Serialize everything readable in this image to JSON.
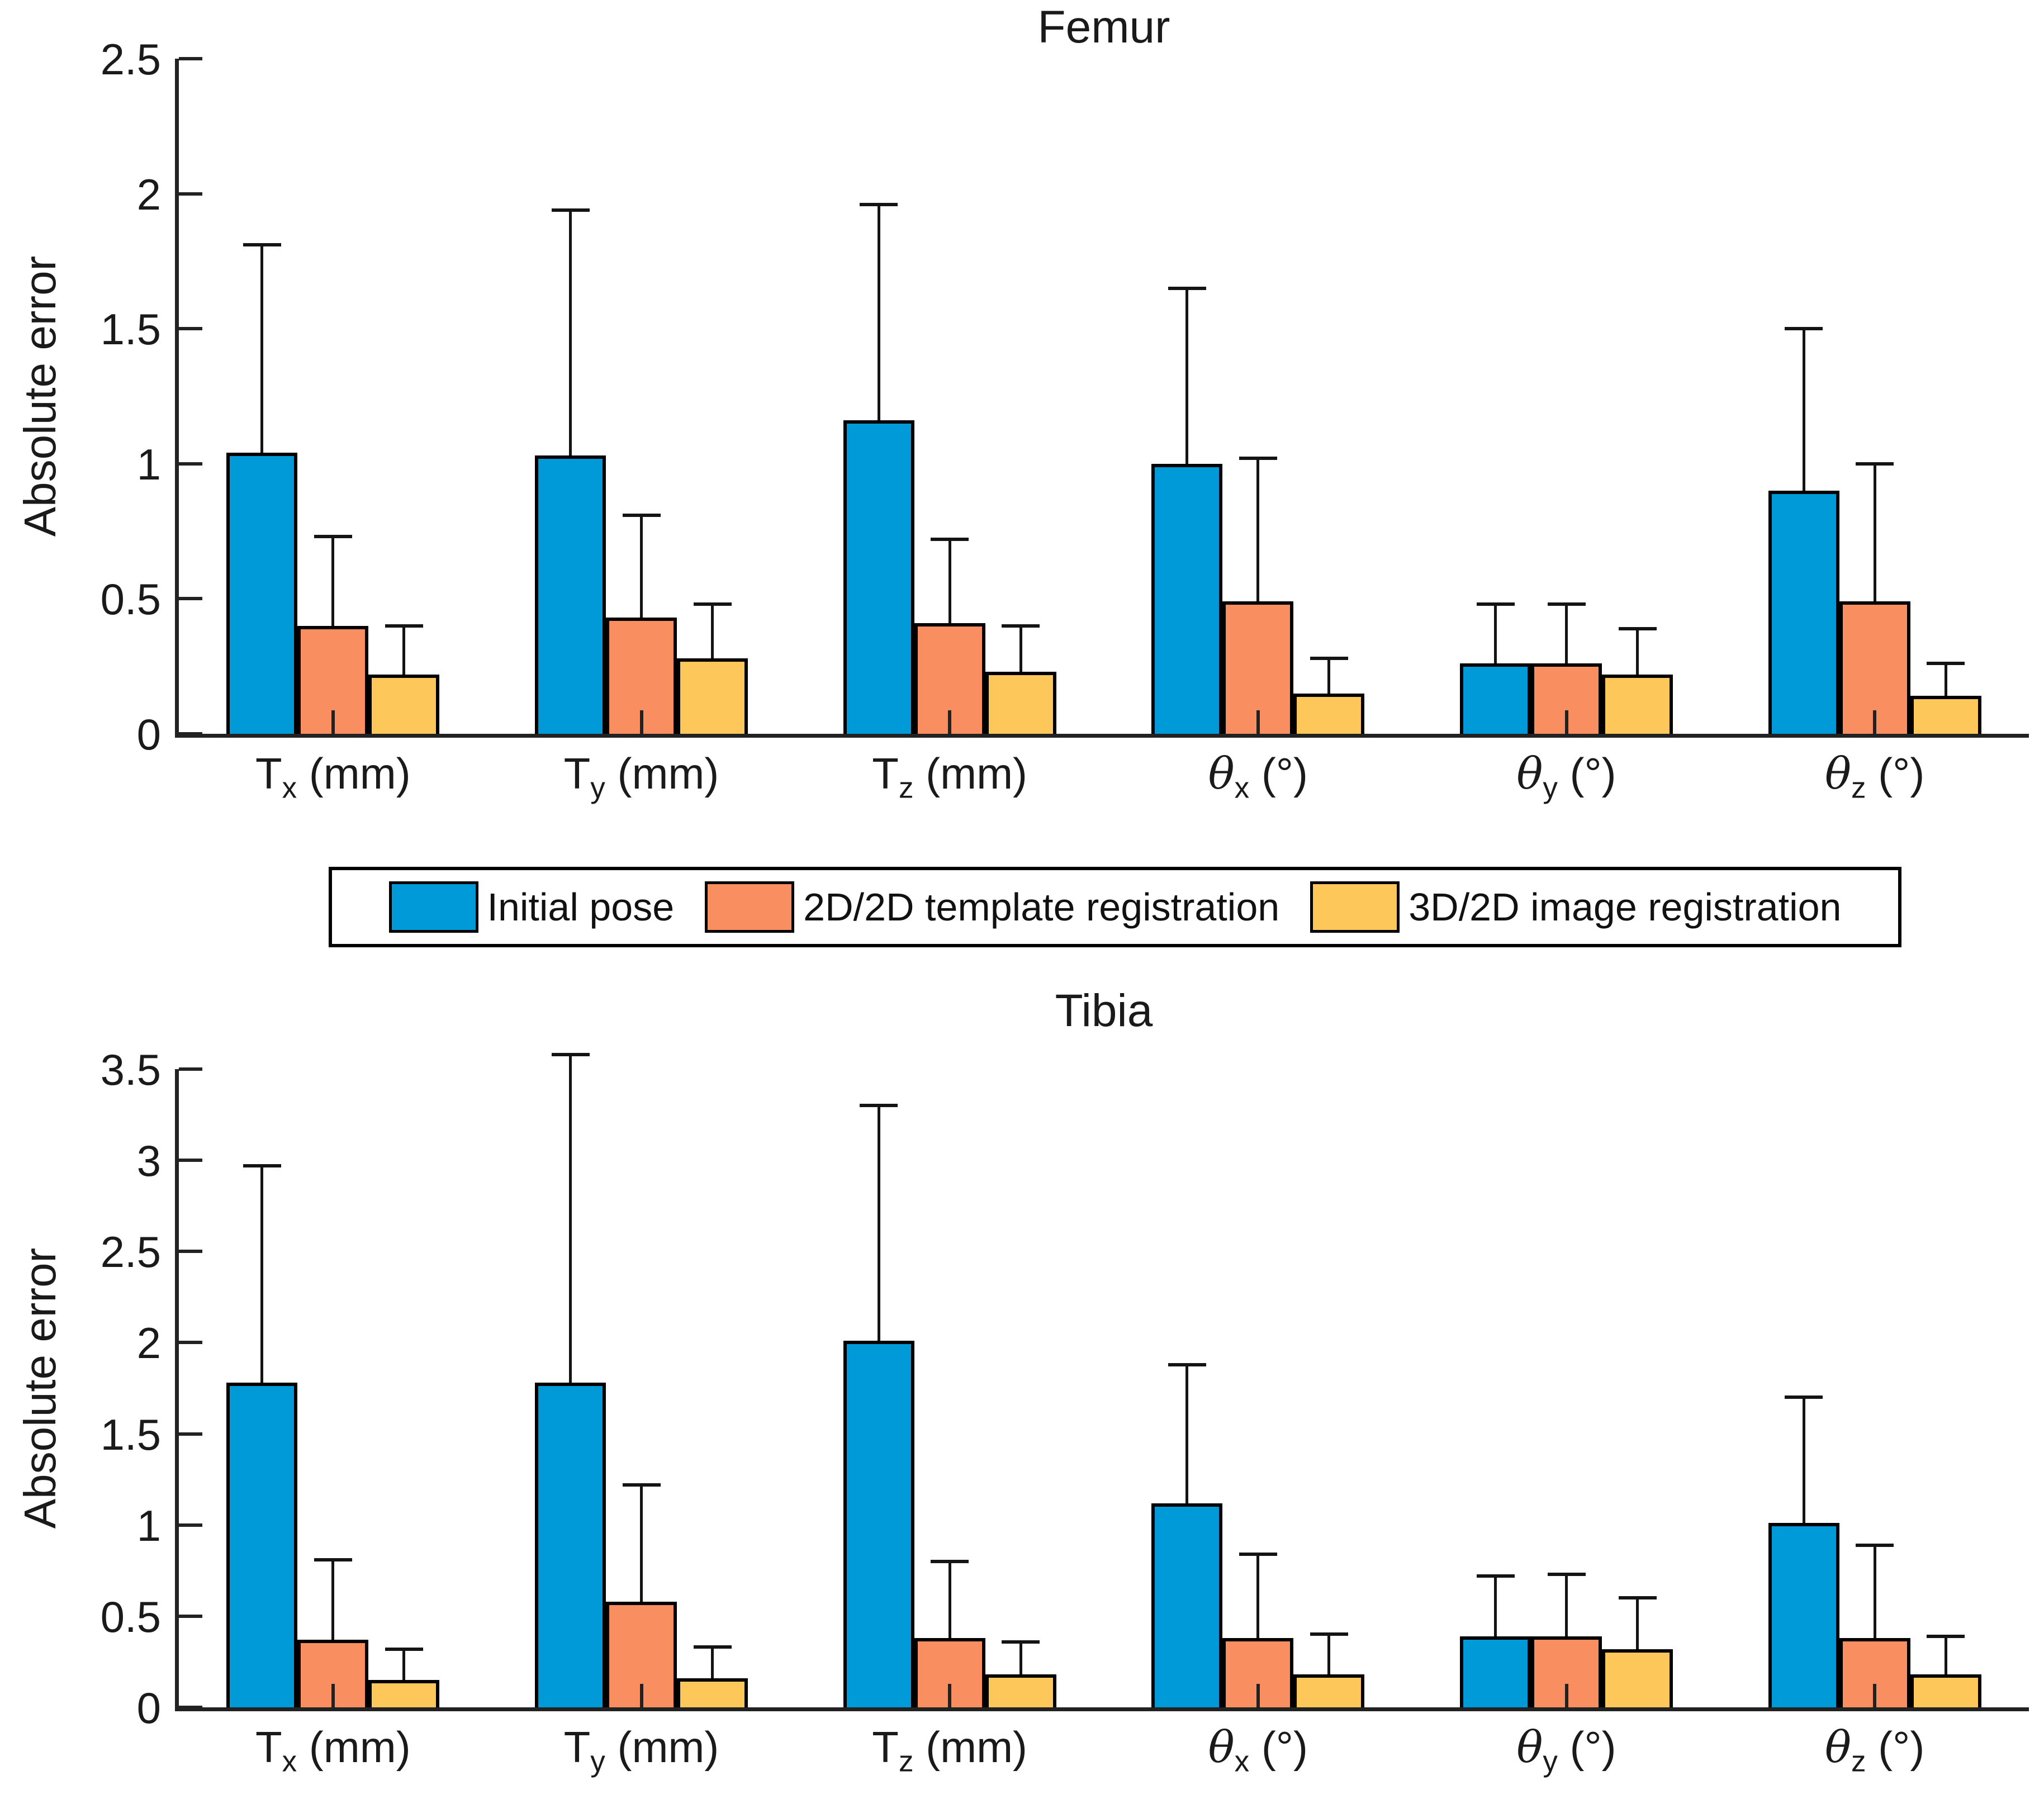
{
  "figure": {
    "background": "#ffffff",
    "axis_color": "#222222",
    "bar_edge_color": "#000000",
    "error_bar_color": "#141414"
  },
  "legend": {
    "items": [
      {
        "label": "Initial pose",
        "color": "#009AD9"
      },
      {
        "label": "2D/2D template registration",
        "color": "#F98E61"
      },
      {
        "label": "3D/2D image registration",
        "color": "#FDC75A"
      }
    ]
  },
  "chart_data": [
    {
      "type": "bar",
      "title": "Femur",
      "ylabel": "Absolute error",
      "xlabel": "",
      "ylim": [
        0,
        2.5
      ],
      "yticks": [
        0,
        0.5,
        1,
        1.5,
        2,
        2.5
      ],
      "ytick_labels": [
        "0",
        "0.5",
        "1",
        "1.5",
        "2",
        "2.5"
      ],
      "grid": false,
      "legend_position": "below",
      "categories": [
        {
          "base": "T",
          "sub": "x",
          "unit": "(mm)",
          "italic": false
        },
        {
          "base": "T",
          "sub": "y",
          "unit": "(mm)",
          "italic": false
        },
        {
          "base": "T",
          "sub": "z",
          "unit": "(mm)",
          "italic": false
        },
        {
          "base": "θ",
          "sub": "x",
          "unit": "(°)",
          "italic": true
        },
        {
          "base": "θ",
          "sub": "y",
          "unit": "(°)",
          "italic": true
        },
        {
          "base": "θ",
          "sub": "z",
          "unit": "(°)",
          "italic": true
        }
      ],
      "series": [
        {
          "name": "Initial pose",
          "color": "#009AD9",
          "values": [
            1.04,
            1.03,
            1.16,
            1.0,
            0.26,
            0.9
          ],
          "err_top": [
            1.81,
            1.94,
            1.96,
            1.65,
            0.48,
            1.5
          ]
        },
        {
          "name": "2D/2D template registration",
          "color": "#F98E61",
          "values": [
            0.4,
            0.43,
            0.41,
            0.49,
            0.26,
            0.49
          ],
          "err_top": [
            0.73,
            0.81,
            0.72,
            1.02,
            0.48,
            1.0
          ]
        },
        {
          "name": "3D/2D image registration",
          "color": "#FDC75A",
          "values": [
            0.22,
            0.28,
            0.23,
            0.15,
            0.22,
            0.14
          ],
          "err_top": [
            0.4,
            0.48,
            0.4,
            0.28,
            0.39,
            0.26
          ]
        }
      ]
    },
    {
      "type": "bar",
      "title": "Tibia",
      "ylabel": "Absolute error",
      "xlabel": "",
      "ylim": [
        0,
        3.5
      ],
      "yticks": [
        0,
        0.5,
        1,
        1.5,
        2,
        2.5,
        3,
        3.5
      ],
      "ytick_labels": [
        "0",
        "0.5",
        "1",
        "1.5",
        "2",
        "2.5",
        "3",
        "3.5"
      ],
      "grid": false,
      "legend_position": "above",
      "categories": [
        {
          "base": "T",
          "sub": "x",
          "unit": "(mm)",
          "italic": false
        },
        {
          "base": "T",
          "sub": "y",
          "unit": "(mm)",
          "italic": false
        },
        {
          "base": "T",
          "sub": "z",
          "unit": "(mm)",
          "italic": false
        },
        {
          "base": "θ",
          "sub": "x",
          "unit": "(°)",
          "italic": true
        },
        {
          "base": "θ",
          "sub": "y",
          "unit": "(°)",
          "italic": true
        },
        {
          "base": "θ",
          "sub": "z",
          "unit": "(°)",
          "italic": true
        }
      ],
      "series": [
        {
          "name": "Initial pose",
          "color": "#009AD9",
          "values": [
            1.78,
            1.78,
            2.01,
            1.12,
            0.39,
            1.01
          ],
          "err_top": [
            2.97,
            3.58,
            3.3,
            1.88,
            0.72,
            1.7
          ]
        },
        {
          "name": "2D/2D template registration",
          "color": "#F98E61",
          "values": [
            0.37,
            0.58,
            0.38,
            0.38,
            0.39,
            0.38
          ],
          "err_top": [
            0.81,
            1.22,
            0.8,
            0.84,
            0.73,
            0.89
          ]
        },
        {
          "name": "3D/2D image registration",
          "color": "#FDC75A",
          "values": [
            0.15,
            0.16,
            0.18,
            0.18,
            0.32,
            0.18
          ],
          "err_top": [
            0.32,
            0.33,
            0.36,
            0.4,
            0.6,
            0.39
          ]
        }
      ]
    }
  ]
}
